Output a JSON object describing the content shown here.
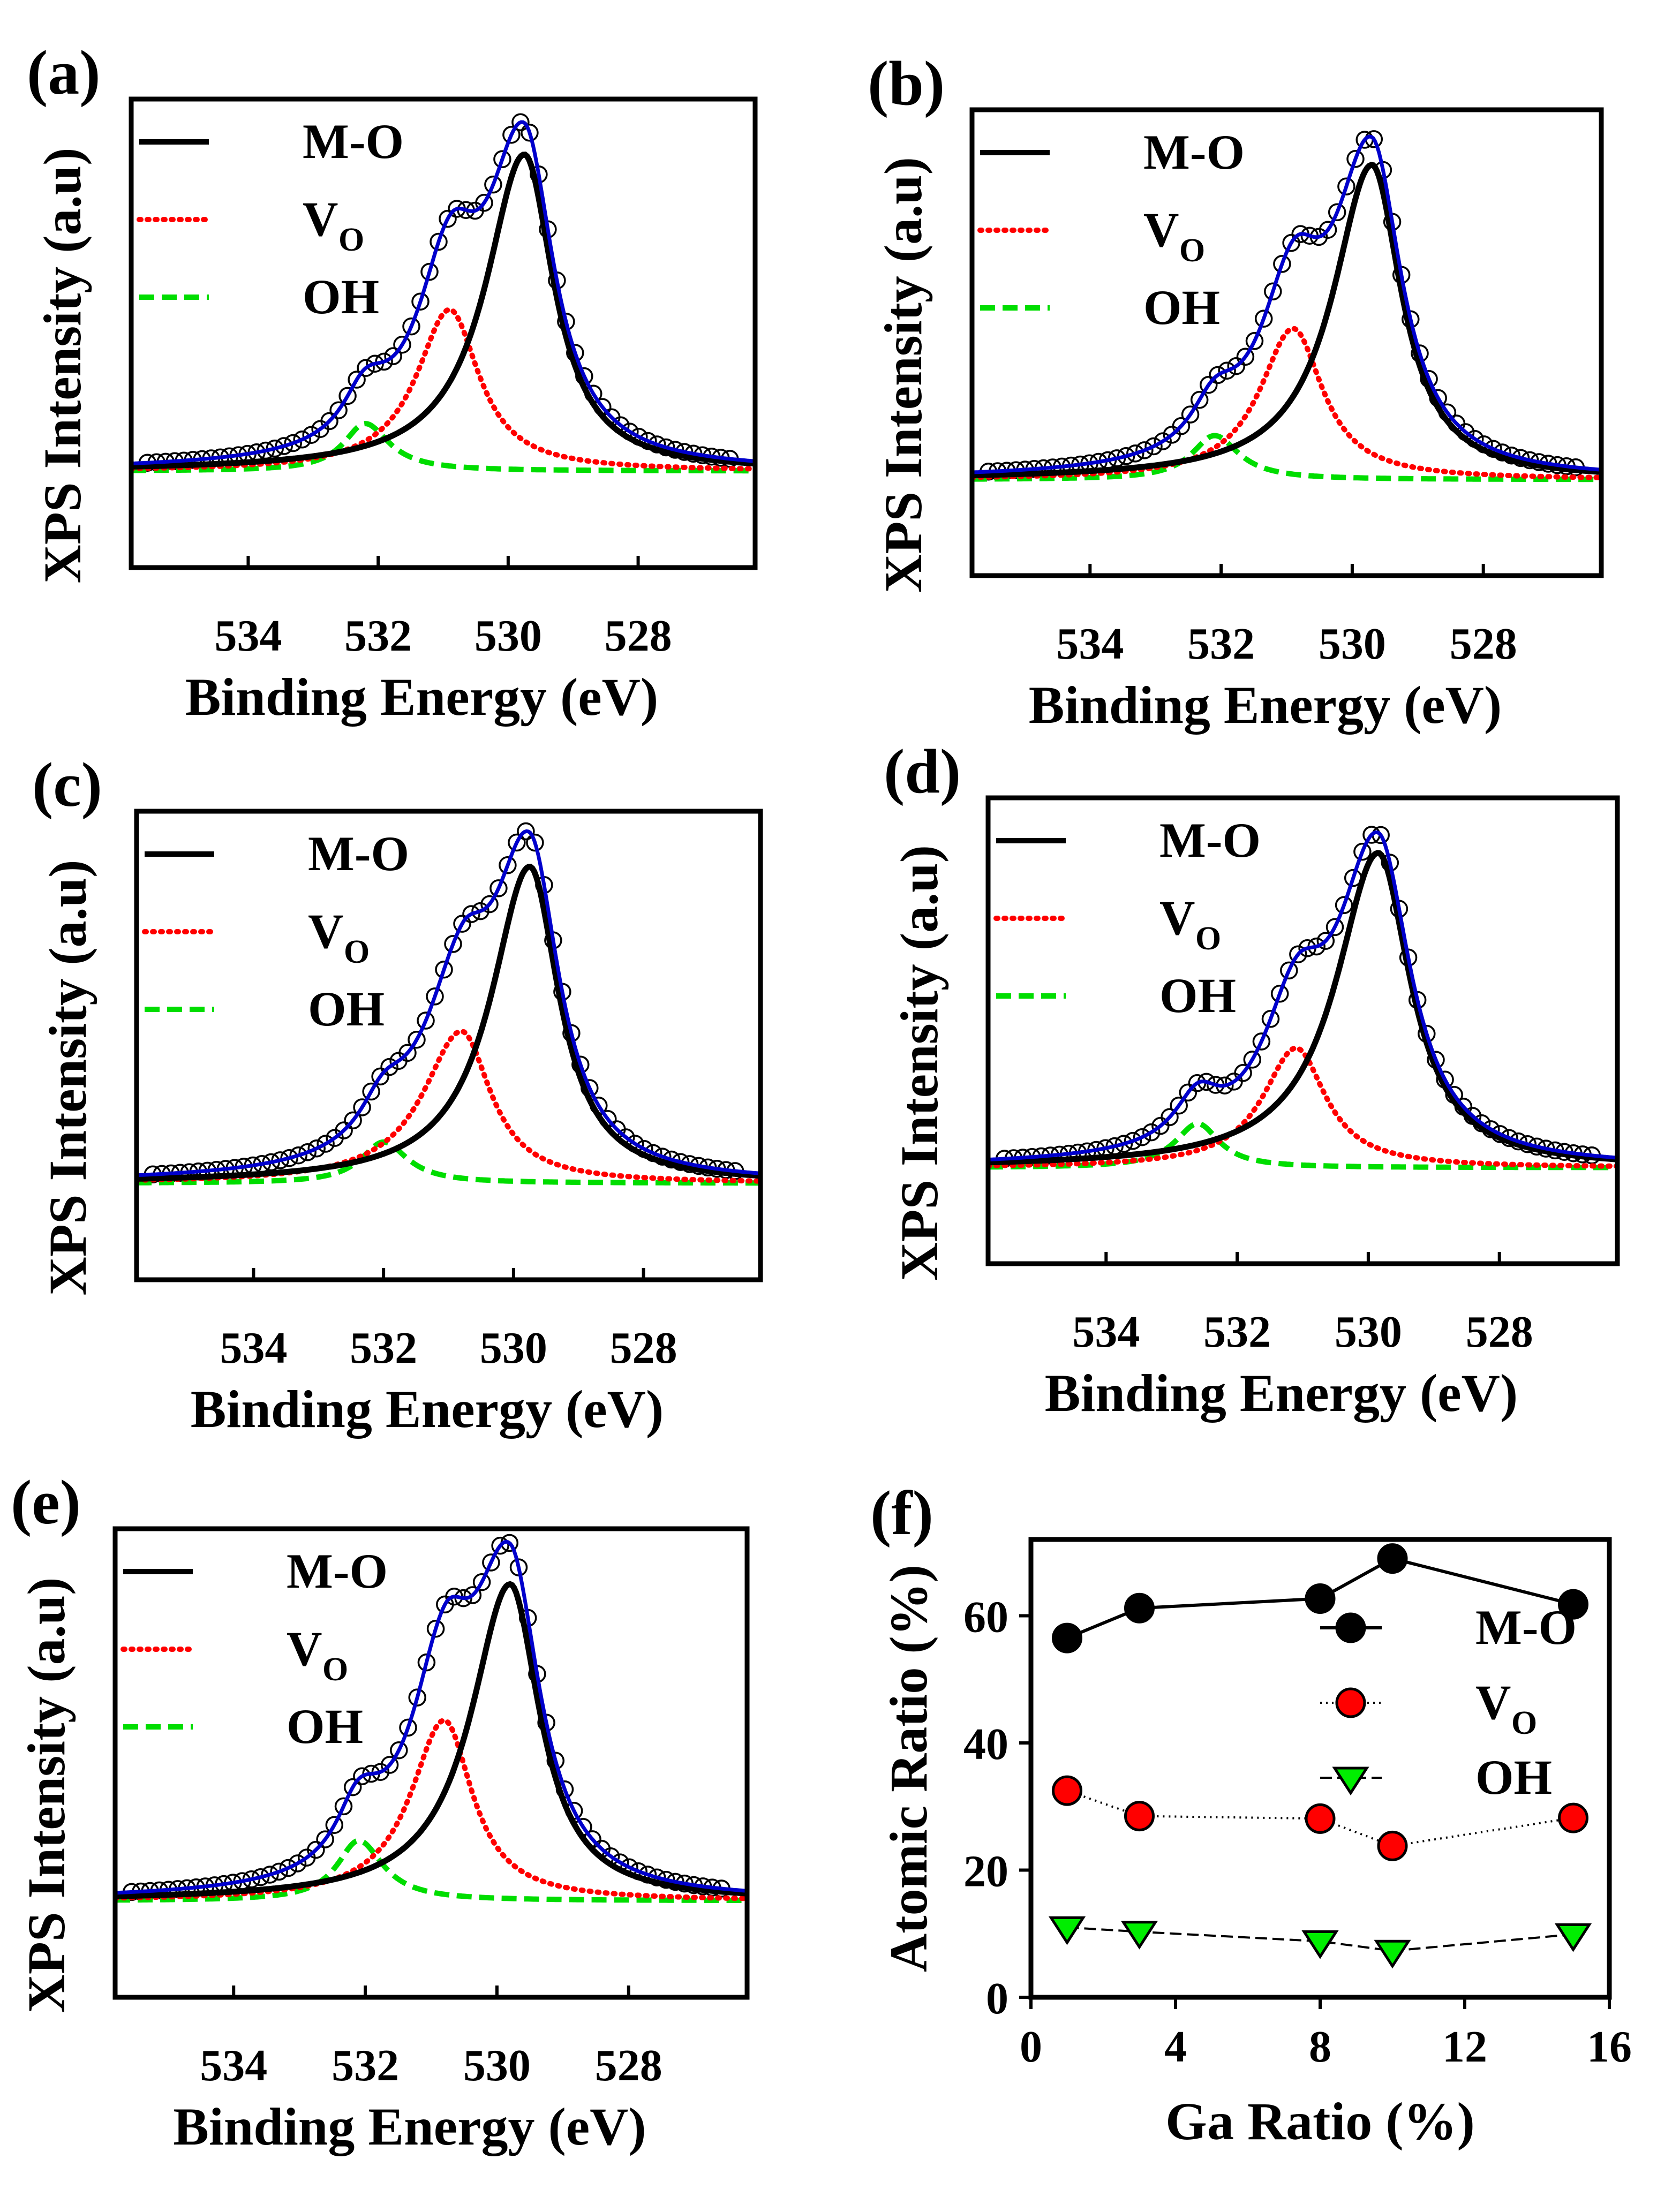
{
  "figure": {
    "panels": [
      {
        "label": "(a)",
        "ylabel": "XPS Intensity (a.u)",
        "xlabel": "Binding Energy (eV)",
        "ticks": [
          "534",
          "532",
          "530",
          "528"
        ],
        "legend": [
          "M-O",
          "V",
          "OH"
        ],
        "legend_sub": "O"
      },
      {
        "label": "(b)",
        "ylabel": "XPS Intensity (a.u)",
        "xlabel": "Binding Energy (eV)",
        "ticks": [
          "534",
          "532",
          "530",
          "528"
        ],
        "legend": [
          "M-O",
          "V",
          "OH"
        ],
        "legend_sub": "O"
      },
      {
        "label": "(c)",
        "ylabel": "XPS Intensity (a.u)",
        "xlabel": "Binding Energy (eV)",
        "ticks": [
          "534",
          "532",
          "530",
          "528"
        ],
        "legend": [
          "M-O",
          "V",
          "OH"
        ],
        "legend_sub": "O"
      },
      {
        "label": "(d)",
        "ylabel": "XPS Intensity (a.u)",
        "xlabel": "Binding Energy (eV)",
        "ticks": [
          "534",
          "532",
          "530",
          "528"
        ],
        "legend": [
          "M-O",
          "V",
          "OH"
        ],
        "legend_sub": "O"
      },
      {
        "label": "(e)",
        "ylabel": "XPS Intensity (a.u)",
        "xlabel": "Binding Energy (eV)",
        "ticks": [
          "534",
          "532",
          "530",
          "528"
        ],
        "legend": [
          "M-O",
          "V",
          "OH"
        ],
        "legend_sub": "O"
      }
    ],
    "panel_f": {
      "label": "(f)",
      "ylabel": "Atomic Ratio (%)",
      "xlabel": "Ga Ratio (%)",
      "xticks": [
        "0",
        "4",
        "8",
        "12",
        "16"
      ],
      "yticks": [
        "0",
        "20",
        "40",
        "60"
      ],
      "legend": [
        "M-O",
        "V",
        "OH"
      ],
      "legend_sub": "O"
    }
  },
  "chart_data": [
    {
      "panel": "(a)",
      "type": "line",
      "title": "",
      "xlabel": "Binding Energy (eV)",
      "ylabel": "XPS Intensity (a.u)",
      "xlim": [
        535.8,
        526.2
      ],
      "ylim": [
        -0.3,
        1.18
      ],
      "peaks": [
        {
          "name": "M-O",
          "center": 529.75,
          "height": 1.0,
          "width_high": 0.72,
          "width_low": 0.55,
          "color": "#000000",
          "style": "solid"
        },
        {
          "name": "VO",
          "center": 530.9,
          "height": 0.51,
          "width_high": 0.62,
          "width_low": 0.55,
          "color": "#ff0000",
          "style": "dotted"
        },
        {
          "name": "OH",
          "center": 532.2,
          "height": 0.15,
          "width_high": 0.4,
          "width_low": 0.45,
          "color": "#00dd00",
          "style": "dashed"
        }
      ],
      "series_fit": {
        "name": "Fit",
        "color": "#0000cc"
      },
      "series_data": {
        "name": "Data",
        "marker": "open-circle"
      }
    },
    {
      "panel": "(b)",
      "type": "line",
      "title": "",
      "xlabel": "Binding Energy (eV)",
      "ylabel": "XPS Intensity (a.u)",
      "xlim": [
        535.8,
        526.2
      ],
      "ylim": [
        -0.3,
        1.18
      ],
      "peaks": [
        {
          "name": "M-O",
          "center": 529.7,
          "height": 1.0,
          "width_high": 0.72,
          "width_low": 0.55,
          "color": "#000000",
          "style": "solid"
        },
        {
          "name": "VO",
          "center": 530.9,
          "height": 0.48,
          "width_high": 0.62,
          "width_low": 0.55,
          "color": "#ff0000",
          "style": "dotted"
        },
        {
          "name": "OH",
          "center": 532.1,
          "height": 0.14,
          "width_high": 0.42,
          "width_low": 0.45,
          "color": "#00dd00",
          "style": "dashed"
        }
      ],
      "series_fit": {
        "name": "Fit",
        "color": "#0000cc"
      },
      "series_data": {
        "name": "Data",
        "marker": "open-circle"
      }
    },
    {
      "panel": "(c)",
      "type": "line",
      "title": "",
      "xlabel": "Binding Energy (eV)",
      "ylabel": "XPS Intensity (a.u)",
      "xlim": [
        535.8,
        526.2
      ],
      "ylim": [
        -0.3,
        1.18
      ],
      "peaks": [
        {
          "name": "M-O",
          "center": 529.75,
          "height": 1.0,
          "width_high": 0.72,
          "width_low": 0.55,
          "color": "#000000",
          "style": "solid"
        },
        {
          "name": "VO",
          "center": 530.8,
          "height": 0.48,
          "width_high": 0.72,
          "width_low": 0.55,
          "color": "#ff0000",
          "style": "dotted"
        },
        {
          "name": "OH",
          "center": 532.0,
          "height": 0.13,
          "width_high": 0.42,
          "width_low": 0.45,
          "color": "#00dd00",
          "style": "dashed"
        }
      ],
      "series_fit": {
        "name": "Fit",
        "color": "#0000cc"
      },
      "series_data": {
        "name": "Data",
        "marker": "open-circle"
      }
    },
    {
      "panel": "(d)",
      "type": "line",
      "title": "",
      "xlabel": "Binding Energy (eV)",
      "ylabel": "XPS Intensity (a.u)",
      "xlim": [
        535.8,
        526.2
      ],
      "ylim": [
        -0.3,
        1.18
      ],
      "peaks": [
        {
          "name": "M-O",
          "center": 529.85,
          "height": 1.0,
          "width_high": 0.78,
          "width_low": 0.6,
          "color": "#000000",
          "style": "solid"
        },
        {
          "name": "VO",
          "center": 531.1,
          "height": 0.38,
          "width_high": 0.62,
          "width_low": 0.55,
          "color": "#ff0000",
          "style": "dotted"
        },
        {
          "name": "OH",
          "center": 532.6,
          "height": 0.14,
          "width_high": 0.42,
          "width_low": 0.4,
          "color": "#00dd00",
          "style": "dashed"
        }
      ],
      "series_fit": {
        "name": "Fit",
        "color": "#0000cc"
      },
      "series_data": {
        "name": "Data",
        "marker": "open-circle"
      }
    },
    {
      "panel": "(e)",
      "type": "line",
      "title": "",
      "xlabel": "Binding Energy (eV)",
      "ylabel": "XPS Intensity (a.u)",
      "xlim": [
        535.8,
        526.2
      ],
      "ylim": [
        -0.3,
        1.18
      ],
      "peaks": [
        {
          "name": "M-O",
          "center": 529.8,
          "height": 1.0,
          "width_high": 0.72,
          "width_low": 0.55,
          "color": "#000000",
          "style": "solid"
        },
        {
          "name": "VO",
          "center": 530.8,
          "height": 0.57,
          "width_high": 0.62,
          "width_low": 0.52,
          "color": "#ff0000",
          "style": "dotted"
        },
        {
          "name": "OH",
          "center": 532.1,
          "height": 0.19,
          "width_high": 0.4,
          "width_low": 0.45,
          "color": "#00dd00",
          "style": "dashed"
        }
      ],
      "series_fit": {
        "name": "Fit",
        "color": "#0000cc"
      },
      "series_data": {
        "name": "Data",
        "marker": "open-circle"
      }
    },
    {
      "panel": "(f)",
      "type": "scatter",
      "title": "",
      "xlabel": "Ga Ratio (%)",
      "ylabel": "Atomic Ratio (%)",
      "xlim": [
        0,
        16
      ],
      "ylim": [
        0,
        72
      ],
      "x": [
        1,
        3,
        8,
        10,
        15
      ],
      "series": [
        {
          "name": "M-O",
          "values": [
            56.5,
            61.2,
            62.7,
            69.0,
            61.8
          ],
          "color": "#000000",
          "marker": "circle",
          "line": "solid"
        },
        {
          "name": "VO",
          "values": [
            32.5,
            28.5,
            28.1,
            23.8,
            28.2
          ],
          "color": "#ff0000",
          "marker": "circle",
          "line": "dotted"
        },
        {
          "name": "OH",
          "values": [
            11.0,
            10.3,
            8.8,
            7.3,
            9.9
          ],
          "color": "#00ee00",
          "marker": "triangle-down",
          "line": "dashed"
        }
      ]
    }
  ]
}
